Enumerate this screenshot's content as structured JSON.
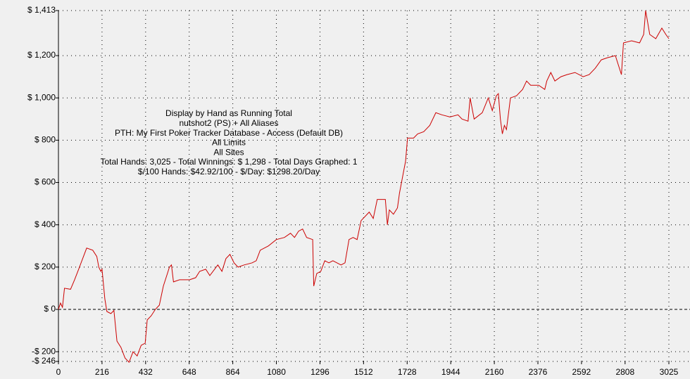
{
  "chart_data": {
    "type": "line",
    "annotations": [
      "Display by Hand as Running Total",
      "nutshot2 (PS) + All Aliases",
      "PTH: My First Poker Tracker Database - Access (Default DB)",
      "All Limits",
      "All Sites",
      "Total Hands: 3,025 - Total Winnings: $ 1,298 - Total Days Graphed: 1",
      "$/100 Hands: $42.92/100 - $/Day: $1298.20/Day"
    ],
    "x": [
      0,
      10,
      20,
      30,
      60,
      80,
      100,
      120,
      140,
      170,
      190,
      200,
      210,
      216,
      230,
      240,
      260,
      275,
      290,
      310,
      330,
      350,
      370,
      390,
      410,
      430,
      440,
      460,
      480,
      500,
      520,
      540,
      550,
      560,
      570,
      600,
      650,
      680,
      700,
      730,
      750,
      790,
      810,
      830,
      850,
      870,
      890,
      920,
      960,
      980,
      1000,
      1040,
      1080,
      1120,
      1150,
      1170,
      1190,
      1210,
      1230,
      1260,
      1265,
      1280,
      1300,
      1320,
      1340,
      1360,
      1400,
      1420,
      1440,
      1460,
      1480,
      1500,
      1540,
      1560,
      1580,
      1620,
      1630,
      1640,
      1660,
      1680,
      1690,
      1710,
      1720,
      1730,
      1760,
      1780,
      1810,
      1840,
      1870,
      1900,
      1940,
      1980,
      2000,
      2030,
      2040,
      2060,
      2100,
      2130,
      2150,
      2170,
      2180,
      2190,
      2200,
      2210,
      2220,
      2240,
      2270,
      2300,
      2320,
      2340,
      2380,
      2410,
      2420,
      2440,
      2460,
      2490,
      2520,
      2560,
      2600,
      2630,
      2660,
      2690,
      2720,
      2760,
      2790,
      2800,
      2840,
      2880,
      2900,
      2910,
      2930,
      2960,
      2990,
      3010,
      3025
    ],
    "series": [
      {
        "color": "#cc0000",
        "values": [
          0,
          30,
          10,
          100,
          95,
          140,
          190,
          240,
          290,
          280,
          250,
          200,
          180,
          190,
          50,
          -10,
          -20,
          -5,
          -150,
          -180,
          -230,
          -250,
          -200,
          -220,
          -170,
          -160,
          -50,
          -30,
          0,
          20,
          110,
          170,
          200,
          210,
          130,
          140,
          140,
          150,
          180,
          190,
          160,
          210,
          180,
          240,
          260,
          220,
          200,
          210,
          220,
          230,
          280,
          300,
          330,
          340,
          360,
          340,
          370,
          380,
          340,
          330,
          110,
          170,
          180,
          230,
          220,
          230,
          210,
          220,
          330,
          340,
          330,
          420,
          460,
          430,
          520,
          520,
          400,
          470,
          450,
          480,
          550,
          650,
          700,
          810,
          810,
          830,
          840,
          870,
          930,
          920,
          910,
          920,
          900,
          890,
          1000,
          900,
          930,
          1000,
          940,
          1010,
          1020,
          900,
          830,
          870,
          850,
          1000,
          1010,
          1040,
          1080,
          1060,
          1060,
          1040,
          1080,
          1120,
          1080,
          1100,
          1110,
          1120,
          1100,
          1110,
          1140,
          1180,
          1190,
          1200,
          1110,
          1260,
          1270,
          1260,
          1300,
          1413,
          1300,
          1280,
          1330,
          1300,
          1280
        ]
      }
    ],
    "xlim": [
      0,
      3025
    ],
    "xticks": [
      0,
      216,
      432,
      648,
      864,
      1080,
      1296,
      1512,
      1728,
      1944,
      2160,
      2376,
      2592,
      2808,
      3025
    ],
    "ylim": [
      -246,
      1413
    ],
    "yticks": [
      {
        "value": 1413,
        "label": "$ 1,413"
      },
      {
        "value": 1200,
        "label": "$ 1,200"
      },
      {
        "value": 1000,
        "label": "$ 1,000"
      },
      {
        "value": 800,
        "label": "$ 800"
      },
      {
        "value": 600,
        "label": "$ 600"
      },
      {
        "value": 400,
        "label": "$ 400"
      },
      {
        "value": 200,
        "label": "$ 200"
      },
      {
        "value": 0,
        "label": "$ 0"
      },
      {
        "value": -200,
        "label": "-$ 200"
      },
      {
        "value": -246,
        "label": "-$ 246"
      }
    ],
    "grid": true
  }
}
